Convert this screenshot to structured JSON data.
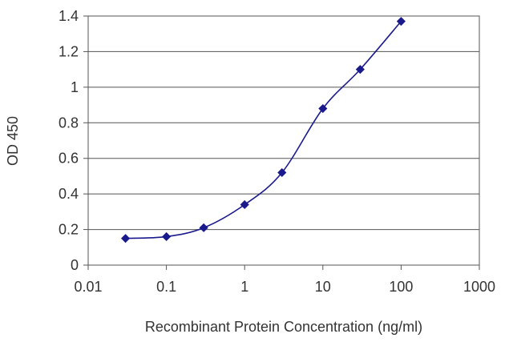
{
  "chart_data": {
    "type": "line",
    "title": "",
    "xlabel": "Recombinant Protein Concentration (ng/ml)",
    "ylabel": "OD 450",
    "x_scale": "log",
    "xlim": [
      0.01,
      1000
    ],
    "ylim": [
      0,
      1.4
    ],
    "x_ticks": [
      0.01,
      0.1,
      1,
      10,
      100,
      1000
    ],
    "x_tick_labels": [
      "0.01",
      "0.1",
      "1",
      "10",
      "100",
      "1000"
    ],
    "y_ticks": [
      0,
      0.2,
      0.4,
      0.6,
      0.8,
      1,
      1.2,
      1.4
    ],
    "y_tick_labels": [
      "0",
      "0.2",
      "0.4",
      "0.6",
      "0.8",
      "1",
      "1.2",
      "1.4"
    ],
    "grid": "horizontal",
    "legend": "none",
    "series": [
      {
        "x": [
          0.03,
          0.1,
          0.3,
          1,
          3,
          10,
          30,
          100
        ],
        "y": [
          0.15,
          0.16,
          0.21,
          0.34,
          0.52,
          0.88,
          1.1,
          1.37
        ],
        "color": "#1a1a8c"
      }
    ]
  }
}
